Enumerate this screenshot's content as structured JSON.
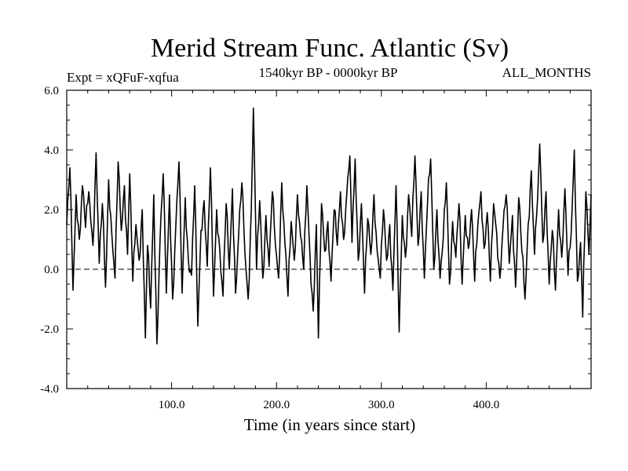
{
  "chart_data": {
    "type": "line",
    "title": "Merid Stream Func. Atlantic (Sv)",
    "subtitle_left": "Expt = xQFuF-xqfua",
    "subtitle_center": "1540kyr BP - 0000kyr BP",
    "subtitle_right": "ALL_MONTHS",
    "xlabel": "Time (in years since start)",
    "ylabel": "",
    "xlim": [
      0,
      500
    ],
    "ylim": [
      -4.0,
      6.0
    ],
    "x_ticks": [
      100,
      200,
      300,
      400
    ],
    "x_tick_labels": [
      "100.0",
      "200.0",
      "300.0",
      "400.0"
    ],
    "y_ticks": [
      -4,
      -2,
      0,
      2,
      4,
      6
    ],
    "y_tick_labels": [
      "-4.0",
      "-2.0",
      "0.0",
      "2.0",
      "4.0",
      "6.0"
    ],
    "reference_line": {
      "y": 0.0,
      "style": "dashed"
    },
    "series": [
      {
        "name": "Merid Stream Func. Atlantic",
        "keypoints": [
          [
            0,
            1.5
          ],
          [
            3,
            3.4
          ],
          [
            6,
            -0.7
          ],
          [
            9,
            2.5
          ],
          [
            12,
            1.0
          ],
          [
            15,
            2.8
          ],
          [
            18,
            1.4
          ],
          [
            21,
            2.6
          ],
          [
            25,
            0.8
          ],
          [
            28,
            3.9
          ],
          [
            31,
            0.2
          ],
          [
            34,
            2.2
          ],
          [
            37,
            -0.6
          ],
          [
            40,
            3.0
          ],
          [
            43,
            1.2
          ],
          [
            46,
            -0.3
          ],
          [
            49,
            3.6
          ],
          [
            52,
            1.3
          ],
          [
            55,
            2.8
          ],
          [
            58,
            0.5
          ],
          [
            60,
            3.2
          ],
          [
            63,
            -0.4
          ],
          [
            66,
            1.5
          ],
          [
            69,
            0.3
          ],
          [
            72,
            2.0
          ],
          [
            75,
            -2.3
          ],
          [
            77,
            0.8
          ],
          [
            80,
            -1.3
          ],
          [
            83,
            2.5
          ],
          [
            86,
            -2.5
          ],
          [
            89,
            1.0
          ],
          [
            92,
            3.2
          ],
          [
            95,
            -0.8
          ],
          [
            98,
            2.5
          ],
          [
            101,
            -1.0
          ],
          [
            104,
            1.4
          ],
          [
            107,
            3.6
          ],
          [
            110,
            -0.8
          ],
          [
            113,
            2.4
          ],
          [
            116,
            0.3
          ],
          [
            119,
            -0.2
          ],
          [
            122,
            2.8
          ],
          [
            125,
            -1.9
          ],
          [
            128,
            1.3
          ],
          [
            131,
            2.3
          ],
          [
            134,
            0.1
          ],
          [
            137,
            3.4
          ],
          [
            140,
            -0.9
          ],
          [
            143,
            2.0
          ],
          [
            146,
            0.6
          ],
          [
            149,
            -0.9
          ],
          [
            152,
            2.2
          ],
          [
            155,
            0.0
          ],
          [
            158,
            2.7
          ],
          [
            161,
            -0.8
          ],
          [
            164,
            1.2
          ],
          [
            167,
            2.9
          ],
          [
            170,
            0.5
          ],
          [
            173,
            -1.0
          ],
          [
            176,
            2.0
          ],
          [
            178,
            5.4
          ],
          [
            181,
            0.0
          ],
          [
            184,
            2.3
          ],
          [
            187,
            -0.3
          ],
          [
            190,
            1.8
          ],
          [
            193,
            0.1
          ],
          [
            196,
            2.6
          ],
          [
            199,
            0.8
          ],
          [
            202,
            -0.3
          ],
          [
            205,
            2.9
          ],
          [
            208,
            0.9
          ],
          [
            211,
            -0.9
          ],
          [
            214,
            1.6
          ],
          [
            217,
            0.3
          ],
          [
            220,
            2.5
          ],
          [
            223,
            1.1
          ],
          [
            226,
            0.0
          ],
          [
            229,
            2.8
          ],
          [
            232,
            0.4
          ],
          [
            235,
            -1.4
          ],
          [
            238,
            1.5
          ],
          [
            240,
            -2.3
          ],
          [
            243,
            2.2
          ],
          [
            246,
            0.6
          ],
          [
            249,
            1.6
          ],
          [
            252,
            -0.4
          ],
          [
            255,
            2.0
          ],
          [
            258,
            0.8
          ],
          [
            261,
            2.6
          ],
          [
            264,
            1.0
          ],
          [
            267,
            2.5
          ],
          [
            270,
            3.8
          ],
          [
            272,
            0.9
          ],
          [
            275,
            3.7
          ],
          [
            278,
            0.3
          ],
          [
            281,
            2.2
          ],
          [
            284,
            -0.8
          ],
          [
            287,
            1.7
          ],
          [
            290,
            0.5
          ],
          [
            293,
            2.5
          ],
          [
            296,
            0.6
          ],
          [
            299,
            -0.3
          ],
          [
            302,
            2.0
          ],
          [
            305,
            0.3
          ],
          [
            308,
            1.5
          ],
          [
            311,
            -0.7
          ],
          [
            314,
            2.8
          ],
          [
            317,
            -2.1
          ],
          [
            320,
            1.8
          ],
          [
            323,
            0.4
          ],
          [
            326,
            2.5
          ],
          [
            329,
            1.1
          ],
          [
            332,
            3.8
          ],
          [
            335,
            0.8
          ],
          [
            338,
            2.6
          ],
          [
            341,
            -0.3
          ],
          [
            344,
            2.2
          ],
          [
            347,
            3.7
          ],
          [
            350,
            0.0
          ],
          [
            353,
            2.0
          ],
          [
            356,
            -0.3
          ],
          [
            359,
            1.0
          ],
          [
            362,
            2.9
          ],
          [
            365,
            -0.5
          ],
          [
            368,
            1.6
          ],
          [
            371,
            0.4
          ],
          [
            374,
            2.2
          ],
          [
            377,
            -0.5
          ],
          [
            380,
            1.8
          ],
          [
            383,
            0.7
          ],
          [
            386,
            2.0
          ],
          [
            389,
            -0.4
          ],
          [
            392,
            1.5
          ],
          [
            395,
            2.6
          ],
          [
            398,
            0.7
          ],
          [
            401,
            1.9
          ],
          [
            404,
            -0.4
          ],
          [
            407,
            2.2
          ],
          [
            410,
            1.2
          ],
          [
            413,
            -0.3
          ],
          [
            416,
            1.4
          ],
          [
            419,
            2.5
          ],
          [
            422,
            0.2
          ],
          [
            425,
            1.8
          ],
          [
            428,
            -0.6
          ],
          [
            431,
            2.4
          ],
          [
            434,
            0.6
          ],
          [
            437,
            -1.0
          ],
          [
            440,
            1.5
          ],
          [
            443,
            3.3
          ],
          [
            446,
            0.5
          ],
          [
            449,
            2.4
          ],
          [
            451,
            4.2
          ],
          [
            454,
            0.9
          ],
          [
            457,
            2.6
          ],
          [
            460,
            -0.5
          ],
          [
            463,
            1.3
          ],
          [
            466,
            -0.7
          ],
          [
            469,
            2.0
          ],
          [
            472,
            0.4
          ],
          [
            475,
            2.7
          ],
          [
            478,
            -0.2
          ],
          [
            481,
            1.2
          ],
          [
            484,
            4.0
          ],
          [
            487,
            -0.4
          ],
          [
            490,
            0.9
          ],
          [
            492,
            -1.6
          ],
          [
            495,
            2.6
          ],
          [
            498,
            0.5
          ],
          [
            500,
            2.5
          ]
        ]
      }
    ]
  }
}
